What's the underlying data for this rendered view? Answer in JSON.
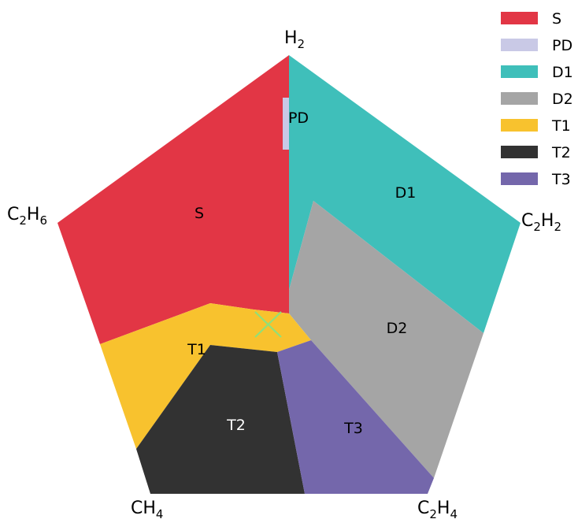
{
  "vertices": [
    {
      "main": "H",
      "sub": "2",
      "tail": "",
      "tail_sub": ""
    },
    {
      "main": "C",
      "sub": "2",
      "tail": "H",
      "tail_sub": "2"
    },
    {
      "main": "C",
      "sub": "2",
      "tail": "H",
      "tail_sub": "4"
    },
    {
      "main": "CH",
      "sub": "4",
      "tail": "",
      "tail_sub": ""
    },
    {
      "main": "C",
      "sub": "2",
      "tail": "H",
      "tail_sub": "6"
    }
  ],
  "zones": [
    {
      "id": "S",
      "label": "S",
      "color": "#e23645",
      "text_color": "#000000"
    },
    {
      "id": "PD",
      "label": "PD",
      "color": "#c9c9e6",
      "text_color": "#000000"
    },
    {
      "id": "D1",
      "label": "D1",
      "color": "#3fbfba",
      "text_color": "#000000"
    },
    {
      "id": "D2",
      "label": "D2",
      "color": "#a5a5a5",
      "text_color": "#000000"
    },
    {
      "id": "T1",
      "label": "T1",
      "color": "#f8c22e",
      "text_color": "#000000"
    },
    {
      "id": "T2",
      "label": "T2",
      "color": "#323232",
      "text_color": "#ffffff"
    },
    {
      "id": "T3",
      "label": "T3",
      "color": "#7467ab",
      "text_color": "#000000"
    }
  ],
  "marker": {
    "symbol": "x",
    "color": "#8fe07a"
  }
}
